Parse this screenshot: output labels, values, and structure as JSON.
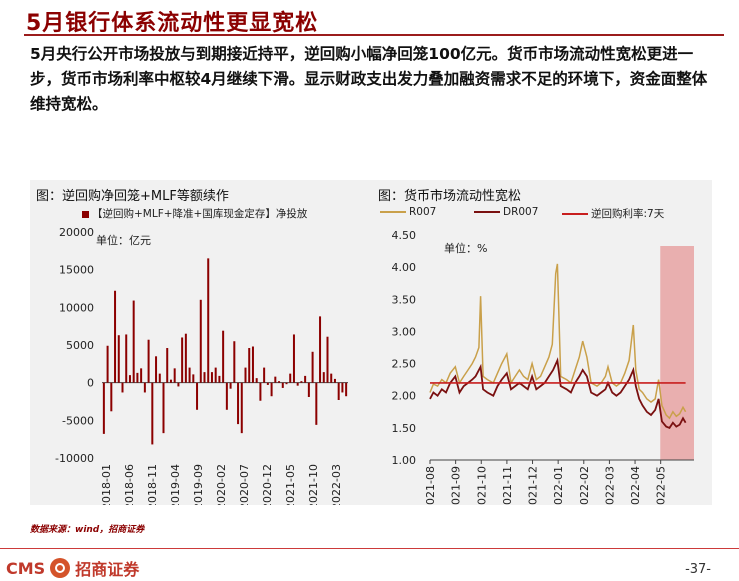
{
  "page": {
    "title": "5月银行体系流动性更显宽松",
    "paragraph": "5月央行公开市场投放与到期接近持平，逆回购小幅净回笼100亿元。货币市场流动性宽松更进一步，货币市场利率中枢较4月继续下滑。显示财政支出发力叠加融资需求不足的环境下，资金面整体维持宽松。",
    "source": "数据来源：wind，招商证券",
    "logo_text_left": "CMS",
    "logo_text_right": "招商证券",
    "page_number": "-37-"
  },
  "chart_data": [
    {
      "type": "bar",
      "title": "图：逆回购净回笼+MLF等额续作",
      "legend": [
        "【逆回购+MLF+降准+国库现金定存】净投放"
      ],
      "unit": "单位：亿元",
      "ylim": [
        -10000,
        20000
      ],
      "yticks": [
        "20000",
        "15000",
        "10000",
        "5000",
        "0",
        "-5000",
        "-10000"
      ],
      "xticks": [
        "2018-01",
        "2018-06",
        "2018-11",
        "2019-04",
        "2019-09",
        "2020-02",
        "2020-07",
        "2020-12",
        "2021-05",
        "2021-10",
        "2022-03"
      ],
      "values": [
        -6800,
        4900,
        -3800,
        12200,
        6300,
        -1300,
        6400,
        1000,
        10900,
        1300,
        1900,
        -1300,
        5700,
        -8200,
        3500,
        1200,
        -6700,
        4600,
        400,
        1900,
        -500,
        6000,
        6500,
        2000,
        1100,
        -3600,
        11000,
        1400,
        16500,
        1400,
        2000,
        900,
        6900,
        -3600,
        -800,
        5500,
        -5500,
        -6700,
        2000,
        4600,
        4800,
        600,
        -2400,
        2000,
        -300,
        -1800,
        800,
        200,
        -700,
        -200,
        1200,
        6400,
        -400,
        200,
        900,
        -1900,
        4100,
        -5600,
        8800,
        1400,
        6100,
        1200,
        500,
        -2300,
        -1300,
        -1800
      ]
    },
    {
      "type": "line",
      "title": "图：货币市场流动性宽松",
      "legend": [
        "R007",
        "DR007",
        "逆回购利率:7天"
      ],
      "unit": "单位：%",
      "ylim": [
        1.0,
        4.5
      ],
      "yticks": [
        "4.50",
        "4.00",
        "3.50",
        "3.00",
        "2.50",
        "2.00",
        "1.50",
        "1.00"
      ],
      "xticks": [
        "2021-08",
        "2021-09",
        "2021-10",
        "2021-11",
        "2021-12",
        "2022-01",
        "2022-02",
        "2022-03",
        "2022-04",
        "2022-05"
      ],
      "x_range": [
        "2021-08-01",
        "2022-06-10"
      ],
      "shade_from": "2022-05-01",
      "colors": {
        "R007": "#c9a04a",
        "DR007": "#7a1010",
        "repo": "#c81e1e",
        "shade": "#e8a3a3"
      },
      "series": [
        {
          "name": "R007",
          "points": [
            [
              "2021-08-01",
              2.05
            ],
            [
              "2021-08-05",
              2.18
            ],
            [
              "2021-08-10",
              2.15
            ],
            [
              "2021-08-15",
              2.25
            ],
            [
              "2021-08-20",
              2.2
            ],
            [
              "2021-08-25",
              2.35
            ],
            [
              "2021-08-31",
              2.45
            ],
            [
              "2021-09-05",
              2.2
            ],
            [
              "2021-09-10",
              2.3
            ],
            [
              "2021-09-15",
              2.4
            ],
            [
              "2021-09-20",
              2.5
            ],
            [
              "2021-09-24",
              2.6
            ],
            [
              "2021-09-28",
              2.75
            ],
            [
              "2021-09-30",
              3.55
            ],
            [
              "2021-10-03",
              2.3
            ],
            [
              "2021-10-08",
              2.25
            ],
            [
              "2021-10-15",
              2.2
            ],
            [
              "2021-10-20",
              2.35
            ],
            [
              "2021-10-25",
              2.5
            ],
            [
              "2021-10-31",
              2.65
            ],
            [
              "2021-11-05",
              2.2
            ],
            [
              "2021-11-10",
              2.3
            ],
            [
              "2021-11-15",
              2.4
            ],
            [
              "2021-11-20",
              2.3
            ],
            [
              "2021-11-25",
              2.25
            ],
            [
              "2021-11-30",
              2.5
            ],
            [
              "2021-12-05",
              2.25
            ],
            [
              "2021-12-10",
              2.3
            ],
            [
              "2021-12-15",
              2.45
            ],
            [
              "2021-12-20",
              2.6
            ],
            [
              "2021-12-24",
              2.8
            ],
            [
              "2021-12-28",
              3.9
            ],
            [
              "2021-12-30",
              4.05
            ],
            [
              "2022-01-03",
              2.3
            ],
            [
              "2022-01-10",
              2.25
            ],
            [
              "2022-01-15",
              2.2
            ],
            [
              "2022-01-20",
              2.4
            ],
            [
              "2022-01-25",
              2.6
            ],
            [
              "2022-01-29",
              2.85
            ],
            [
              "2022-02-03",
              2.6
            ],
            [
              "2022-02-08",
              2.2
            ],
            [
              "2022-02-15",
              2.15
            ],
            [
              "2022-02-20",
              2.2
            ],
            [
              "2022-02-25",
              2.3
            ],
            [
              "2022-02-28",
              2.45
            ],
            [
              "2022-03-05",
              2.2
            ],
            [
              "2022-03-10",
              2.15
            ],
            [
              "2022-03-15",
              2.2
            ],
            [
              "2022-03-20",
              2.35
            ],
            [
              "2022-03-25",
              2.55
            ],
            [
              "2022-03-30",
              3.1
            ],
            [
              "2022-04-02",
              2.4
            ],
            [
              "2022-04-06",
              2.1
            ],
            [
              "2022-04-10",
              2.05
            ],
            [
              "2022-04-15",
              1.95
            ],
            [
              "2022-04-20",
              1.9
            ],
            [
              "2022-04-25",
              1.95
            ],
            [
              "2022-04-29",
              2.25
            ],
            [
              "2022-05-03",
              1.85
            ],
            [
              "2022-05-08",
              1.7
            ],
            [
              "2022-05-12",
              1.65
            ],
            [
              "2022-05-16",
              1.75
            ],
            [
              "2022-05-20",
              1.68
            ],
            [
              "2022-05-24",
              1.72
            ],
            [
              "2022-05-28",
              1.82
            ],
            [
              "2022-05-31",
              1.75
            ]
          ]
        },
        {
          "name": "DR007",
          "points": [
            [
              "2021-08-01",
              1.95
            ],
            [
              "2021-08-05",
              2.05
            ],
            [
              "2021-08-10",
              2.0
            ],
            [
              "2021-08-15",
              2.1
            ],
            [
              "2021-08-20",
              2.05
            ],
            [
              "2021-08-25",
              2.2
            ],
            [
              "2021-08-31",
              2.3
            ],
            [
              "2021-09-05",
              2.05
            ],
            [
              "2021-09-10",
              2.15
            ],
            [
              "2021-09-15",
              2.2
            ],
            [
              "2021-09-20",
              2.25
            ],
            [
              "2021-09-24",
              2.3
            ],
            [
              "2021-09-30",
              2.45
            ],
            [
              "2021-10-03",
              2.1
            ],
            [
              "2021-10-08",
              2.05
            ],
            [
              "2021-10-15",
              2.0
            ],
            [
              "2021-10-20",
              2.15
            ],
            [
              "2021-10-25",
              2.25
            ],
            [
              "2021-10-31",
              2.35
            ],
            [
              "2021-11-05",
              2.1
            ],
            [
              "2021-11-10",
              2.15
            ],
            [
              "2021-11-15",
              2.2
            ],
            [
              "2021-11-20",
              2.15
            ],
            [
              "2021-11-25",
              2.1
            ],
            [
              "2021-11-30",
              2.3
            ],
            [
              "2021-12-05",
              2.1
            ],
            [
              "2021-12-10",
              2.15
            ],
            [
              "2021-12-15",
              2.2
            ],
            [
              "2021-12-20",
              2.3
            ],
            [
              "2021-12-25",
              2.4
            ],
            [
              "2021-12-30",
              2.55
            ],
            [
              "2022-01-03",
              2.15
            ],
            [
              "2022-01-10",
              2.1
            ],
            [
              "2022-01-15",
              2.05
            ],
            [
              "2022-01-20",
              2.2
            ],
            [
              "2022-01-25",
              2.3
            ],
            [
              "2022-01-29",
              2.4
            ],
            [
              "2022-02-03",
              2.3
            ],
            [
              "2022-02-08",
              2.05
            ],
            [
              "2022-02-15",
              2.0
            ],
            [
              "2022-02-20",
              2.05
            ],
            [
              "2022-02-25",
              2.1
            ],
            [
              "2022-02-28",
              2.2
            ],
            [
              "2022-03-05",
              2.05
            ],
            [
              "2022-03-10",
              2.0
            ],
            [
              "2022-03-15",
              2.05
            ],
            [
              "2022-03-20",
              2.15
            ],
            [
              "2022-03-25",
              2.25
            ],
            [
              "2022-03-30",
              2.4
            ],
            [
              "2022-04-02",
              2.15
            ],
            [
              "2022-04-06",
              1.95
            ],
            [
              "2022-04-10",
              1.85
            ],
            [
              "2022-04-15",
              1.75
            ],
            [
              "2022-04-20",
              1.7
            ],
            [
              "2022-04-25",
              1.78
            ],
            [
              "2022-04-29",
              1.95
            ],
            [
              "2022-05-03",
              1.6
            ],
            [
              "2022-05-08",
              1.52
            ],
            [
              "2022-05-12",
              1.5
            ],
            [
              "2022-05-16",
              1.58
            ],
            [
              "2022-05-20",
              1.52
            ],
            [
              "2022-05-24",
              1.55
            ],
            [
              "2022-05-28",
              1.65
            ],
            [
              "2022-05-31",
              1.58
            ]
          ]
        },
        {
          "name": "逆回购利率:7天",
          "points": [
            [
              "2021-08-01",
              2.2
            ],
            [
              "2022-05-31",
              2.2
            ]
          ]
        }
      ]
    }
  ]
}
